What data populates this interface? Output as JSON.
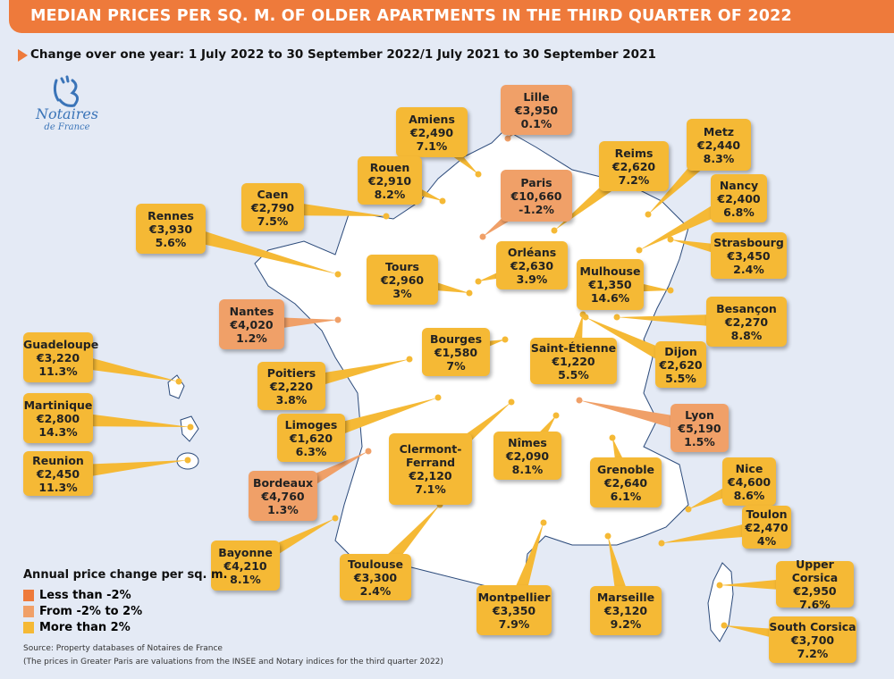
{
  "title": "MEDIAN PRICES PER SQ. M. OF OLDER APARTMENTS IN THE THIRD QUARTER OF 2022",
  "subtitle": "Change over one year: 1 July 2022 to 30 September 2022/1 July 2021 to 30 September 2021",
  "logo": {
    "line1": "Notaires",
    "line2": "de France"
  },
  "colors": {
    "header": "#ee7a3b",
    "less_than_minus2": "#ee7a3b",
    "minus2_to_2": "#f0a068",
    "more_than_2": "#f5b935",
    "background": "#e4eaf5",
    "land": "#ffffff",
    "border": "#2b4a7a"
  },
  "legend": {
    "title": "Annual price change per sq. m.",
    "items": [
      {
        "label": "Less than -2%",
        "category": "less"
      },
      {
        "label": "From -2% to 2%",
        "category": "mid"
      },
      {
        "label": "More than 2%",
        "category": "more"
      }
    ]
  },
  "source": "Source: Property databases of Notaires de France",
  "note": "(The prices in Greater Paris are valuations from the INSEE and Notary indices for the third quarter 2022)",
  "cities": [
    {
      "name": "Lille",
      "price": "€3,950",
      "change": "0.1%",
      "category": "mid"
    },
    {
      "name": "Amiens",
      "price": "€2,490",
      "change": "7.1%",
      "category": "more"
    },
    {
      "name": "Reims",
      "price": "€2,620",
      "change": "7.2%",
      "category": "more"
    },
    {
      "name": "Metz",
      "price": "€2,440",
      "change": "8.3%",
      "category": "more"
    },
    {
      "name": "Rouen",
      "price": "€2,910",
      "change": "8.2%",
      "category": "more"
    },
    {
      "name": "Paris",
      "price": "€10,660",
      "change": "-1.2%",
      "category": "mid"
    },
    {
      "name": "Caen",
      "price": "€2,790",
      "change": "7.5%",
      "category": "more"
    },
    {
      "name": "Nancy",
      "price": "€2,400",
      "change": "6.8%",
      "category": "more"
    },
    {
      "name": "Rennes",
      "price": "€3,930",
      "change": "5.6%",
      "category": "more"
    },
    {
      "name": "Strasbourg",
      "price": "€3,450",
      "change": "2.4%",
      "category": "more"
    },
    {
      "name": "Tours",
      "price": "€2,960",
      "change": "3%",
      "category": "more"
    },
    {
      "name": "Orléans",
      "price": "€2,630",
      "change": "3.9%",
      "category": "more"
    },
    {
      "name": "Mulhouse",
      "price": "€1,350",
      "change": "14.6%",
      "category": "more"
    },
    {
      "name": "Nantes",
      "price": "€4,020",
      "change": "1.2%",
      "category": "mid"
    },
    {
      "name": "Besançon",
      "price": "€2,270",
      "change": "8.8%",
      "category": "more"
    },
    {
      "name": "Bourges",
      "price": "€1,580",
      "change": "7%",
      "category": "more"
    },
    {
      "name": "Saint-Étienne",
      "price": "€1,220",
      "change": "5.5%",
      "category": "more"
    },
    {
      "name": "Guadeloupe",
      "price": "€3,220",
      "change": "11.3%",
      "category": "more"
    },
    {
      "name": "Dijon",
      "price": "€2,620",
      "change": "5.5%",
      "category": "more"
    },
    {
      "name": "Poitiers",
      "price": "€2,220",
      "change": "3.8%",
      "category": "more"
    },
    {
      "name": "Martinique",
      "price": "€2,800",
      "change": "14.3%",
      "category": "more"
    },
    {
      "name": "Lyon",
      "price": "€5,190",
      "change": "1.5%",
      "category": "mid"
    },
    {
      "name": "Limoges",
      "price": "€1,620",
      "change": "6.3%",
      "category": "more"
    },
    {
      "name": "Clermont-Ferrand",
      "price": "€2,120",
      "change": "7.1%",
      "category": "more"
    },
    {
      "name": "Nîmes",
      "price": "€2,090",
      "change": "8.1%",
      "category": "more"
    },
    {
      "name": "Reunion",
      "price": "€2,450",
      "change": "11.3%",
      "category": "more"
    },
    {
      "name": "Grenoble",
      "price": "€2,640",
      "change": "6.1%",
      "category": "more"
    },
    {
      "name": "Bordeaux",
      "price": "€4,760",
      "change": "1.3%",
      "category": "mid"
    },
    {
      "name": "Nice",
      "price": "€4,600",
      "change": "8.6%",
      "category": "more"
    },
    {
      "name": "Toulon",
      "price": "€2,470",
      "change": "4%",
      "category": "more"
    },
    {
      "name": "Bayonne",
      "price": "€4,210",
      "change": "8.1%",
      "category": "more"
    },
    {
      "name": "Toulouse",
      "price": "€3,300",
      "change": "2.4%",
      "category": "more"
    },
    {
      "name": "Montpellier",
      "price": "€3,350",
      "change": "7.9%",
      "category": "more"
    },
    {
      "name": "Marseille",
      "price": "€3,120",
      "change": "9.2%",
      "category": "more"
    },
    {
      "name": "Upper Corsica",
      "price": "€2,950",
      "change": "7.6%",
      "category": "more"
    },
    {
      "name": "South Corsica",
      "price": "€3,700",
      "change": "7.2%",
      "category": "more"
    }
  ]
}
